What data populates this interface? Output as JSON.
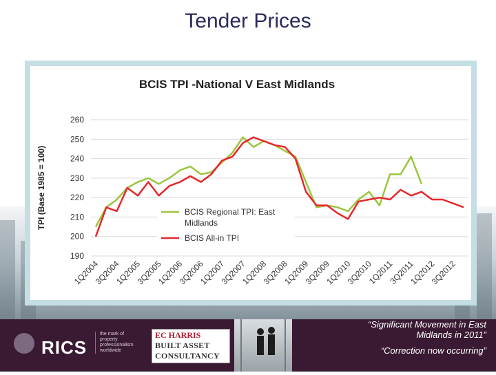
{
  "slide": {
    "title": "Tender Prices"
  },
  "footer": {
    "rics": {
      "name": "RICS",
      "tagline": "the mark of property professionalism worldwide"
    },
    "partner": {
      "line1": "EC HARRIS",
      "line2": "BUILT ASSET",
      "line3": "CONSULTANCY"
    },
    "quote": {
      "line1": "“Significant Movement in East",
      "line2": "Midlands in 2011”",
      "line3": "“Correction now occurring”"
    }
  },
  "colors": {
    "regional": "#9bc53d",
    "allin": "#e8262b",
    "title": "#2b2b5e",
    "footer_bg": "#3a1a33"
  },
  "chart_data": {
    "type": "line",
    "title": "BCIS TPI -National V East Midlands",
    "ylabel": "TPI (Base 1985 = 100)",
    "xlabel": "",
    "ylim": [
      190,
      260
    ],
    "yticks": [
      190,
      200,
      210,
      220,
      230,
      240,
      250,
      260
    ],
    "grid": true,
    "legend_position": "lower-left",
    "categories": [
      "1Q2004",
      "2Q2004",
      "3Q2004",
      "4Q2004",
      "1Q2005",
      "2Q2005",
      "3Q2005",
      "4Q2005",
      "1Q2006",
      "2Q2006",
      "3Q2006",
      "4Q2006",
      "1Q2007",
      "2Q2007",
      "3Q2007",
      "4Q2007",
      "1Q2008",
      "2Q2008",
      "3Q2008",
      "4Q2008",
      "1Q2009",
      "2Q2009",
      "3Q2009",
      "4Q2009",
      "1Q2010",
      "2Q2010",
      "3Q2010",
      "4Q2010",
      "1Q2011",
      "2Q2011",
      "3Q2011",
      "4Q2011",
      "1Q2012",
      "2Q2012",
      "3Q2012",
      "4Q2012"
    ],
    "tick_labels": [
      "1Q2004",
      "3Q2004",
      "1Q2005",
      "3Q2005",
      "1Q2006",
      "3Q2006",
      "1Q2007",
      "3Q2007",
      "1Q2008",
      "3Q2008",
      "1Q2009",
      "3Q2009",
      "1Q2010",
      "3Q2010",
      "1Q2011",
      "3Q2011",
      "1Q2012",
      "3Q2012"
    ],
    "series": [
      {
        "name": "BCIS Regional TPI: East Midlands",
        "color": "#9bc53d",
        "values": [
          205,
          215,
          219,
          225,
          228,
          230,
          227,
          230,
          234,
          236,
          232,
          233,
          238,
          243,
          251,
          246,
          249,
          247,
          244,
          241,
          228,
          215,
          216,
          215,
          213,
          219,
          223,
          216,
          232,
          232,
          241,
          227,
          null,
          null,
          null,
          null
        ]
      },
      {
        "name": "BCIS All-in TPI",
        "color": "#e8262b",
        "values": [
          200,
          215,
          213,
          225,
          221,
          228,
          221,
          226,
          228,
          231,
          228,
          232,
          239,
          241,
          248,
          251,
          249,
          247,
          246,
          240,
          223,
          216,
          216,
          212,
          209,
          218,
          219,
          220,
          219,
          224,
          221,
          223,
          219,
          219,
          217,
          215
        ]
      }
    ]
  }
}
